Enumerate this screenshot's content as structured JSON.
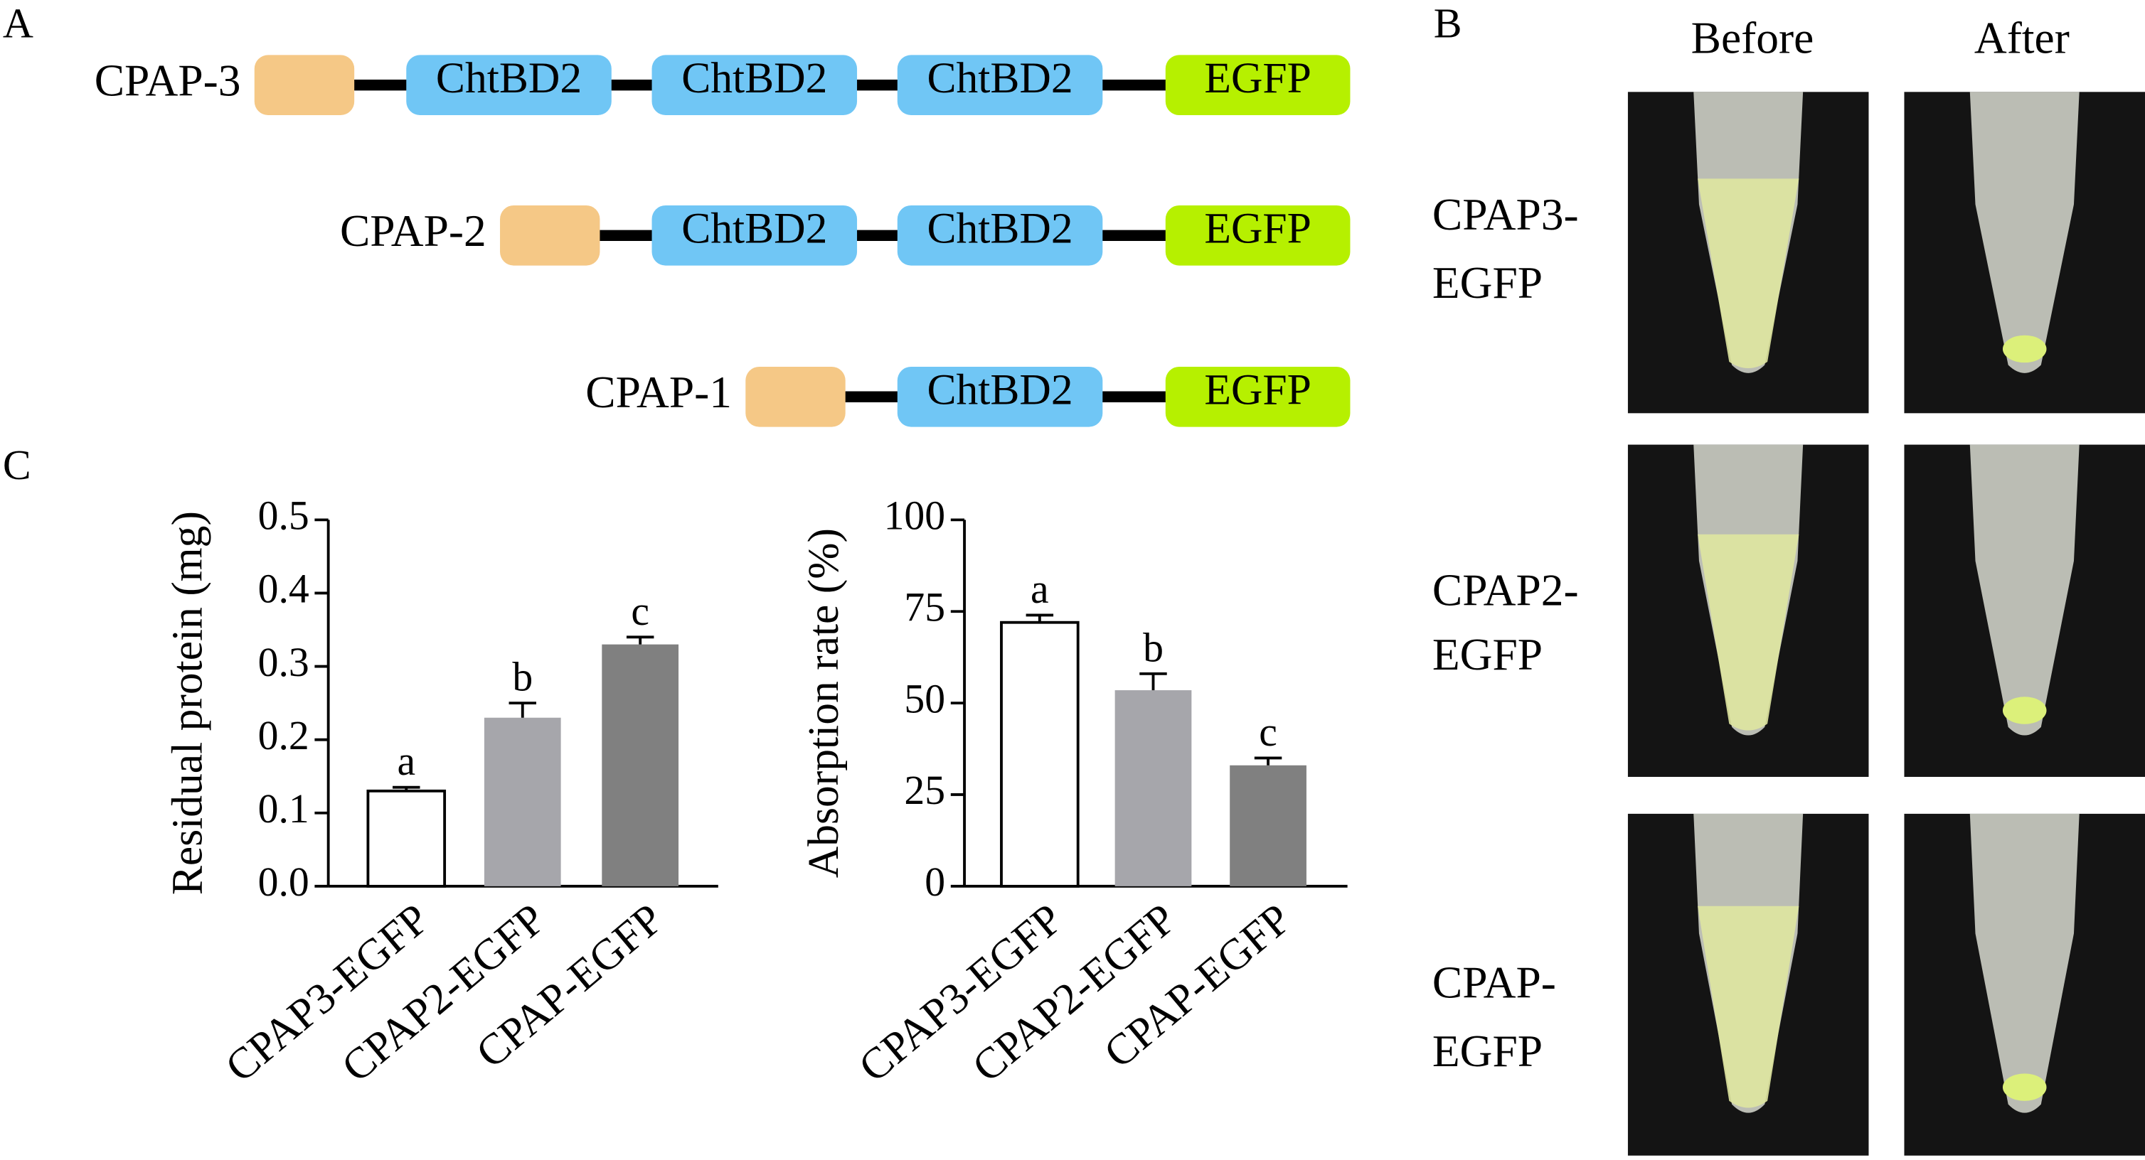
{
  "panel_labels": [
    "A",
    "B",
    "C"
  ],
  "constructs": [
    {
      "label": "CPAP-3",
      "domains": [
        "ChtBD2",
        "ChtBD2",
        "ChtBD2",
        "EGFP"
      ]
    },
    {
      "label": "CPAP-2",
      "domains": [
        "ChtBD2",
        "ChtBD2",
        "EGFP"
      ]
    },
    {
      "label": "CPAP-1",
      "domains": [
        "ChtBD2",
        "EGFP"
      ]
    }
  ],
  "photos": {
    "columns": [
      "Before",
      "After"
    ],
    "rows": [
      [
        "CPAP3-",
        "EGFP"
      ],
      [
        "CPAP2-",
        "EGFP"
      ],
      [
        "CPAP-",
        "EGFP"
      ]
    ]
  },
  "chart_data": [
    {
      "type": "bar",
      "ylabel": "Residual protein (mg)",
      "categories": [
        "CPAP3-EGFP",
        "CPAP2-EGFP",
        "CPAP-EGFP"
      ],
      "values": [
        0.13,
        0.23,
        0.33
      ],
      "errors": [
        0.005,
        0.02,
        0.01
      ],
      "annotations": [
        "a",
        "b",
        "c"
      ],
      "colors": [
        "#ffffff",
        "#a6a6ab",
        "#808080"
      ],
      "ylim": [
        0,
        0.5
      ],
      "yticks": [
        {
          "value": 0,
          "label": "0.0"
        },
        0.1,
        0.2,
        0.3,
        0.4,
        0.5
      ]
    },
    {
      "type": "bar",
      "ylabel": "Absorption rate (%)",
      "categories": [
        "CPAP3-EGFP",
        "CPAP2-EGFP",
        "CPAP-EGFP"
      ],
      "values": [
        72,
        53.5,
        33
      ],
      "errors": [
        2,
        4.5,
        2
      ],
      "annotations": [
        "a",
        "b",
        "c"
      ],
      "colors": [
        "#ffffff",
        "#a6a6ab",
        "#808080"
      ],
      "ylim": [
        0,
        100
      ],
      "yticks": [
        0,
        25,
        50,
        75,
        100
      ]
    }
  ]
}
